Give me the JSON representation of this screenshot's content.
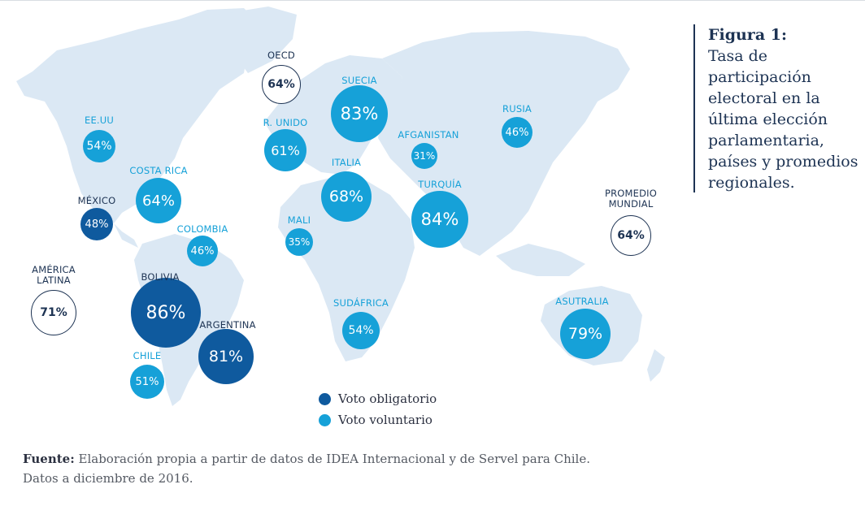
{
  "figure": {
    "title": "Figura 1:",
    "caption": "Tasa de participación electoral en la última elección parlamentaria, países y promedios regionales."
  },
  "colors": {
    "obligatorio": "#0f5a9e",
    "voluntario": "#16a1d8",
    "promedio_outline": "#1d3353",
    "land": "#dbe8f4"
  },
  "legend": {
    "obligatorio": "Voto obligatorio",
    "voluntario": "Voto voluntario"
  },
  "source": {
    "label": "Fuente:",
    "text": " Elaboración propia a partir de datos de IDEA Internacional y de Servel para Chile.",
    "note": "Datos a diciembre de 2016."
  },
  "countries": [
    {
      "name": "EE.UU",
      "value": "54%",
      "turnout": 54,
      "voto": "voluntario"
    },
    {
      "name": "COSTA RICA",
      "value": "64%",
      "turnout": 64,
      "voto": "voluntario"
    },
    {
      "name": "MÉXICO",
      "value": "48%",
      "turnout": 48,
      "voto": "obligatorio"
    },
    {
      "name": "COLOMBIA",
      "value": "46%",
      "turnout": 46,
      "voto": "voluntario"
    },
    {
      "name": "BOLIVIA",
      "value": "86%",
      "turnout": 86,
      "voto": "obligatorio"
    },
    {
      "name": "ARGENTINA",
      "value": "81%",
      "turnout": 81,
      "voto": "obligatorio"
    },
    {
      "name": "CHILE",
      "value": "51%",
      "turnout": 51,
      "voto": "voluntario"
    },
    {
      "name": "R. UNIDO",
      "value": "61%",
      "turnout": 61,
      "voto": "voluntario"
    },
    {
      "name": "SUECIA",
      "value": "83%",
      "turnout": 83,
      "voto": "voluntario"
    },
    {
      "name": "ITALIA",
      "value": "68%",
      "turnout": 68,
      "voto": "voluntario"
    },
    {
      "name": "MALI",
      "value": "35%",
      "turnout": 35,
      "voto": "voluntario"
    },
    {
      "name": "AFGANISTAN",
      "value": "31%",
      "turnout": 31,
      "voto": "voluntario"
    },
    {
      "name": "TURQUÍA",
      "value": "84%",
      "turnout": 84,
      "voto": "voluntario"
    },
    {
      "name": "RUSIA",
      "value": "46%",
      "turnout": 46,
      "voto": "voluntario"
    },
    {
      "name": "SUDÁFRICA",
      "value": "54%",
      "turnout": 54,
      "voto": "voluntario"
    },
    {
      "name": "ASUTRALIA",
      "value": "79%",
      "turnout": 79,
      "voto": "obligatorio_display_light"
    }
  ],
  "averages": [
    {
      "name": "OECD",
      "value": "64%",
      "turnout": 64
    },
    {
      "name": "AMÉRICA LATINA",
      "value": "71%",
      "turnout": 71
    },
    {
      "name": "PROMEDIO MUNDIAL",
      "value": "64%",
      "turnout": 64
    }
  ]
}
